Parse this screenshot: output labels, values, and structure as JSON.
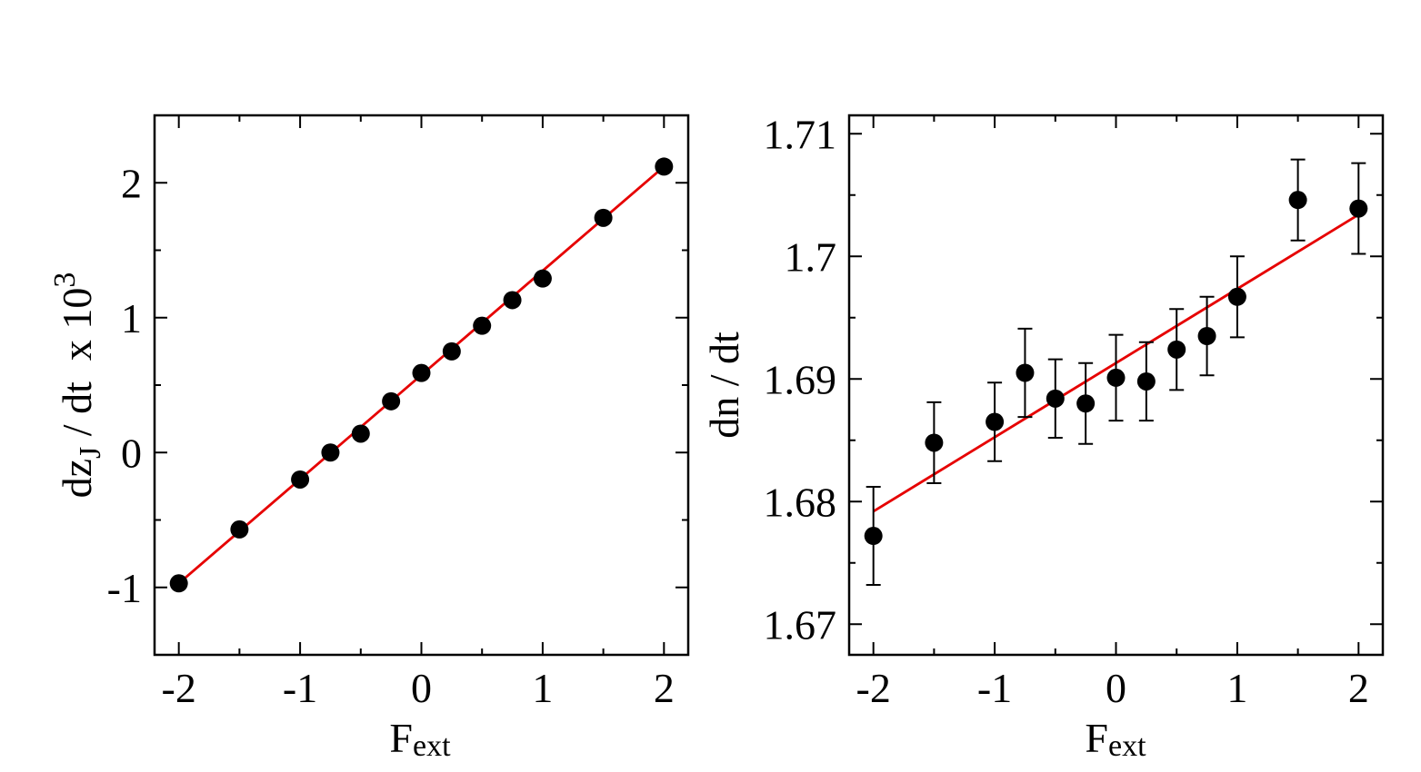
{
  "chart_data": [
    {
      "type": "scatter",
      "xlabel": "F",
      "xlabel_sub": "ext",
      "ylabel": "dz",
      "ylabel_sub": "J",
      "ylabel_tail": " / dt  x 10",
      "ylabel_sup": "3",
      "xlim": [
        -2.2,
        2.2
      ],
      "ylim": [
        -1.5,
        2.5
      ],
      "xticks": [
        -2,
        -1,
        0,
        1,
        2
      ],
      "xtick_labels": [
        "-2",
        "-1",
        "0",
        "1",
        "2"
      ],
      "yticks": [
        -1,
        0,
        1,
        2
      ],
      "ytick_labels": [
        "-1",
        "0",
        "1",
        "2"
      ],
      "series": [
        {
          "points": [
            {
              "x": -2,
              "y": -0.97
            },
            {
              "x": -1.5,
              "y": -0.57
            },
            {
              "x": -1,
              "y": -0.2
            },
            {
              "x": -0.75,
              "y": 0.0
            },
            {
              "x": -0.5,
              "y": 0.14
            },
            {
              "x": -0.25,
              "y": 0.38
            },
            {
              "x": 0,
              "y": 0.59
            },
            {
              "x": 0.25,
              "y": 0.75
            },
            {
              "x": 0.5,
              "y": 0.94
            },
            {
              "x": 0.75,
              "y": 1.13
            },
            {
              "x": 1,
              "y": 1.29
            },
            {
              "x": 1.5,
              "y": 1.74
            },
            {
              "x": 2,
              "y": 2.12
            }
          ]
        }
      ],
      "fit_line": {
        "x": [
          -2,
          2
        ],
        "y": [
          -0.97,
          2.12
        ],
        "color": "#e60000"
      }
    },
    {
      "type": "scatter",
      "xlabel": "F",
      "xlabel_sub": "ext",
      "ylabel": "dn / dt",
      "xlim": [
        -2.2,
        2.2
      ],
      "ylim": [
        1.6675,
        1.7115
      ],
      "xticks": [
        -2,
        -1,
        0,
        1,
        2
      ],
      "xtick_labels": [
        "-2",
        "-1",
        "0",
        "1",
        "2"
      ],
      "yticks": [
        1.67,
        1.68,
        1.69,
        1.7,
        1.71
      ],
      "ytick_labels": [
        "1.67",
        "1.68",
        "1.69",
        "1.7",
        "1.71"
      ],
      "series": [
        {
          "points": [
            {
              "x": -2,
              "y": 1.6772,
              "err": 0.004
            },
            {
              "x": -1.5,
              "y": 1.6848,
              "err": 0.0033
            },
            {
              "x": -1,
              "y": 1.6865,
              "err": 0.0032
            },
            {
              "x": -0.75,
              "y": 1.6905,
              "err": 0.0036
            },
            {
              "x": -0.5,
              "y": 1.6884,
              "err": 0.0032
            },
            {
              "x": -0.25,
              "y": 1.688,
              "err": 0.0033
            },
            {
              "x": 0,
              "y": 1.6901,
              "err": 0.0035
            },
            {
              "x": 0.25,
              "y": 1.6898,
              "err": 0.0032
            },
            {
              "x": 0.5,
              "y": 1.6924,
              "err": 0.0033
            },
            {
              "x": 0.75,
              "y": 1.6935,
              "err": 0.0032
            },
            {
              "x": 1,
              "y": 1.6967,
              "err": 0.0033
            },
            {
              "x": 1.5,
              "y": 1.7046,
              "err": 0.0033
            },
            {
              "x": 2,
              "y": 1.7039,
              "err": 0.0037
            }
          ]
        }
      ],
      "fit_line": {
        "x": [
          -2,
          2
        ],
        "y": [
          1.6792,
          1.7034
        ],
        "color": "#e60000"
      }
    }
  ]
}
